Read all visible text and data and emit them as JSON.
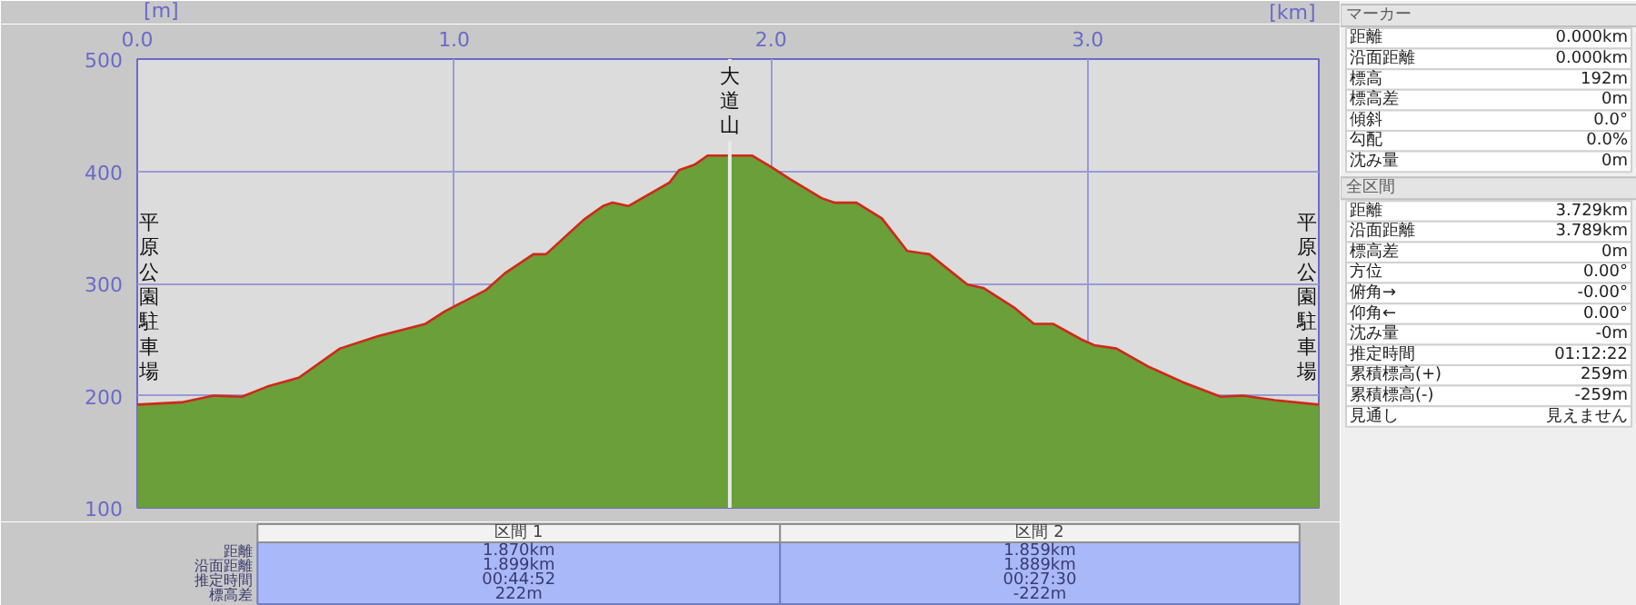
{
  "chart_data": {
    "type": "area",
    "xlabel": "[km]",
    "ylabel": "[m]",
    "x": [
      0,
      0.14,
      0.24,
      0.33,
      0.41,
      0.51,
      0.64,
      0.76,
      0.91,
      0.97,
      1.1,
      1.16,
      1.25,
      1.29,
      1.41,
      1.47,
      1.5,
      1.55,
      1.68,
      1.71,
      1.76,
      1.8,
      1.87,
      1.94,
      2.0,
      2.06,
      2.16,
      2.2,
      2.27,
      2.35,
      2.43,
      2.5,
      2.62,
      2.67,
      2.77,
      2.83,
      2.89,
      2.98,
      3.02,
      3.09,
      3.19,
      3.3,
      3.42,
      3.49,
      3.59,
      3.729
    ],
    "series": [
      {
        "color": "#6a9f3a",
        "values": [
          192,
          194,
          200,
          199,
          208,
          216,
          242,
          253,
          264,
          275,
          294,
          309,
          326,
          326,
          357,
          369,
          372,
          369,
          390,
          401,
          406,
          414,
          414,
          414,
          404,
          393,
          376,
          372,
          372,
          358,
          329,
          326,
          299,
          296,
          278,
          264,
          264,
          250,
          245,
          242,
          226,
          212,
          199,
          200,
          196,
          192
        ]
      },
      {
        "type": "line",
        "color": "#d02818",
        "values": [
          192,
          194,
          200,
          199,
          208,
          216,
          242,
          253,
          264,
          275,
          294,
          309,
          326,
          326,
          357,
          369,
          372,
          369,
          390,
          401,
          406,
          414,
          414,
          414,
          404,
          393,
          376,
          372,
          372,
          358,
          329,
          326,
          299,
          296,
          278,
          264,
          264,
          250,
          245,
          242,
          226,
          212,
          199,
          200,
          196,
          192
        ]
      }
    ],
    "xlim": [
      0,
      3.729
    ],
    "ylim": [
      100,
      500
    ],
    "xticks": [
      {
        "value": 0,
        "label": "0.0"
      },
      {
        "value": 1,
        "label": "1.0"
      },
      {
        "value": 2,
        "label": "2.0"
      },
      {
        "value": 3,
        "label": "3.0"
      }
    ],
    "yticks": [
      100,
      200,
      300,
      400,
      500
    ],
    "grid": true,
    "ref_lines": [
      {
        "axis": "x",
        "value": 1.87,
        "color": "#e8e8e8"
      }
    ],
    "annotations": [
      {
        "text": "大道山",
        "x": 1.87,
        "y": 414
      },
      "平原公園駐車場",
      "平原公園駐車場",
      "距離",
      "沿面距離",
      "推定時間",
      "標高差",
      "区間 1",
      "1.870km",
      "1.899km",
      "00:44:52",
      "222m",
      "区間 2",
      "1.859km",
      "1.889km",
      "00:27:30",
      "-222m",
      "マーカー",
      "距離",
      "0.000km",
      "沿面距離",
      "0.000km",
      "標高",
      "192m",
      "標高差",
      "0m",
      "傾斜",
      "0.0°",
      "勾配",
      "0.0%",
      "沈み量",
      "0m",
      "全区間",
      "距離",
      "3.729km",
      "沿面距離",
      "3.789km",
      "標高差",
      "0m",
      "方位",
      "0.00°",
      "俯角→",
      "-0.00°",
      "仰角←",
      "0.00°",
      "沈み量",
      "-0m",
      "推定時間",
      "01:12:22",
      "累積標高(+)",
      "259m",
      "累積標高(-)",
      "-259m",
      "見通し",
      "見えません"
    ]
  }
}
